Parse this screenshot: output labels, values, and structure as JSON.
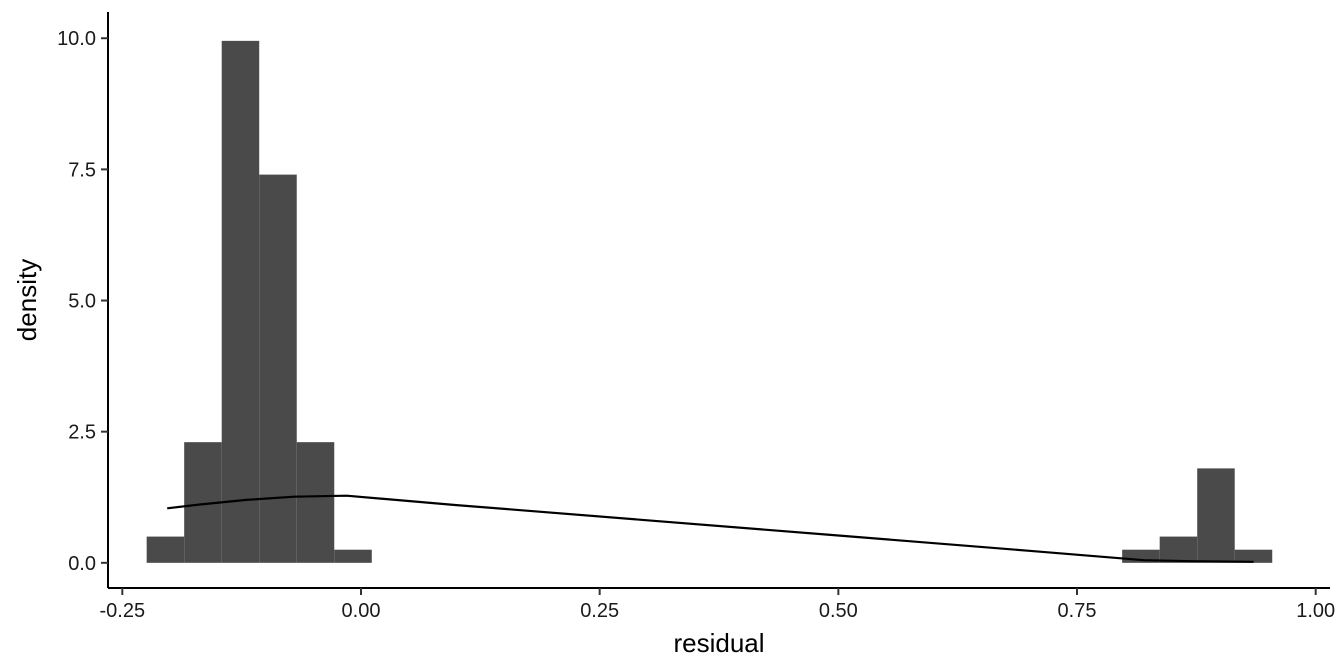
{
  "chart_data": {
    "type": "bar",
    "subtype": "histogram-with-density",
    "title": "",
    "xlabel": "residual",
    "ylabel": "density",
    "xlim": [
      -0.265,
      1.015
    ],
    "ylim": [
      -0.48,
      10.5
    ],
    "x_ticks": [
      -0.25,
      0.0,
      0.25,
      0.5,
      0.75,
      1.0
    ],
    "x_tick_labels": [
      "-0.25",
      "0.00",
      "0.25",
      "0.50",
      "0.75",
      "1.00"
    ],
    "y_ticks": [
      0.0,
      2.5,
      5.0,
      7.5,
      10.0
    ],
    "y_tick_labels": [
      "0.0",
      "2.5",
      "5.0",
      "7.5",
      "10.0"
    ],
    "grid": false,
    "bin_width": 0.0393,
    "bins": [
      {
        "x0": -0.2245,
        "x1": -0.1852,
        "density": 0.5
      },
      {
        "x0": -0.1852,
        "x1": -0.1459,
        "density": 2.3
      },
      {
        "x0": -0.1459,
        "x1": -0.1066,
        "density": 9.95
      },
      {
        "x0": -0.1066,
        "x1": -0.0673,
        "density": 7.4
      },
      {
        "x0": -0.0673,
        "x1": -0.028,
        "density": 2.3
      },
      {
        "x0": -0.028,
        "x1": 0.0113,
        "density": 0.25
      },
      {
        "x0": 0.7973,
        "x1": 0.8366,
        "density": 0.25
      },
      {
        "x0": 0.8366,
        "x1": 0.8759,
        "density": 0.5
      },
      {
        "x0": 0.8759,
        "x1": 0.9152,
        "density": 1.8
      },
      {
        "x0": 0.9152,
        "x1": 0.9545,
        "density": 0.25
      }
    ],
    "density_line": {
      "x": [
        -0.203,
        -0.17,
        -0.12,
        -0.07,
        -0.015,
        0.1,
        0.3,
        0.5,
        0.7,
        0.82,
        0.87,
        0.935
      ],
      "y": [
        1.04,
        1.11,
        1.2,
        1.26,
        1.28,
        1.1,
        0.81,
        0.52,
        0.23,
        0.05,
        0.03,
        0.02
      ]
    },
    "colors": {
      "bar_fill": "#4a4a4a",
      "line": "#000000",
      "axis": "#000000"
    }
  }
}
